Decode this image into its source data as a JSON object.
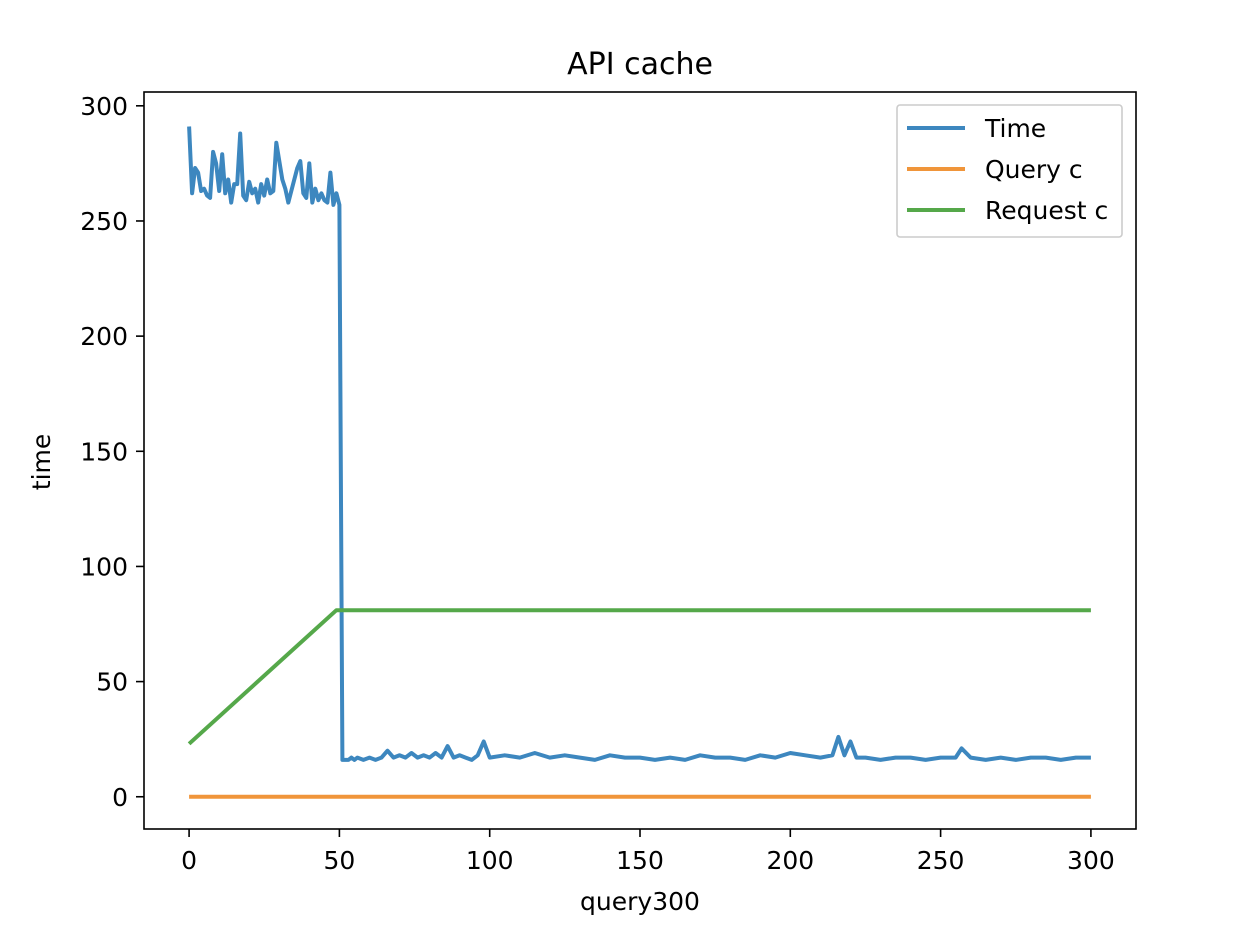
{
  "chart_data": {
    "type": "line",
    "title": "API cache",
    "xlabel": "query300",
    "ylabel": "time",
    "xlim": [
      -15,
      315
    ],
    "ylim": [
      -14,
      306
    ],
    "xticks": [
      0,
      50,
      100,
      150,
      200,
      250,
      300
    ],
    "yticks": [
      0,
      50,
      100,
      150,
      200,
      250,
      300
    ],
    "grid": false,
    "legend_position": "top-right",
    "series": [
      {
        "name": "Time",
        "color": "#3d87bf",
        "x": [
          0,
          1,
          2,
          3,
          4,
          5,
          6,
          7,
          8,
          9,
          10,
          11,
          12,
          13,
          14,
          15,
          16,
          17,
          18,
          19,
          20,
          21,
          22,
          23,
          24,
          25,
          26,
          27,
          28,
          29,
          30,
          31,
          32,
          33,
          34,
          35,
          36,
          37,
          38,
          39,
          40,
          41,
          42,
          43,
          44,
          45,
          46,
          47,
          48,
          49,
          50,
          51,
          52,
          53,
          54,
          55,
          56,
          58,
          60,
          62,
          64,
          66,
          68,
          70,
          72,
          74,
          76,
          78,
          80,
          82,
          84,
          86,
          88,
          90,
          92,
          94,
          96,
          98,
          100,
          105,
          110,
          115,
          120,
          125,
          130,
          135,
          140,
          145,
          150,
          155,
          160,
          165,
          170,
          175,
          180,
          185,
          190,
          195,
          200,
          205,
          210,
          214,
          216,
          218,
          220,
          222,
          225,
          230,
          235,
          240,
          245,
          250,
          255,
          257,
          260,
          265,
          270,
          275,
          280,
          285,
          290,
          295,
          300
        ],
        "values": [
          291,
          262,
          273,
          271,
          263,
          264,
          261,
          260,
          280,
          275,
          263,
          279,
          262,
          268,
          258,
          266,
          266,
          288,
          261,
          259,
          267,
          262,
          264,
          258,
          266,
          261,
          268,
          262,
          263,
          284,
          276,
          268,
          264,
          258,
          263,
          268,
          273,
          276,
          262,
          260,
          275,
          258,
          264,
          259,
          262,
          259,
          258,
          271,
          257,
          262,
          257,
          16,
          16,
          16,
          17,
          16,
          17,
          16,
          17,
          16,
          17,
          20,
          17,
          18,
          17,
          19,
          17,
          18,
          17,
          19,
          17,
          22,
          17,
          18,
          17,
          16,
          18,
          24,
          17,
          18,
          17,
          19,
          17,
          18,
          17,
          16,
          18,
          17,
          17,
          16,
          17,
          16,
          18,
          17,
          17,
          16,
          18,
          17,
          19,
          18,
          17,
          18,
          26,
          18,
          24,
          17,
          17,
          16,
          17,
          17,
          16,
          17,
          17,
          21,
          17,
          16,
          17,
          16,
          17,
          17,
          16,
          17,
          17
        ]
      },
      {
        "name": "Query c",
        "color": "#f0953a",
        "x": [
          0,
          300
        ],
        "values": [
          0,
          0
        ]
      },
      {
        "name": "Request c",
        "color": "#55a84a",
        "x": [
          0,
          49,
          50,
          300
        ],
        "values": [
          23,
          81,
          81,
          81
        ]
      }
    ]
  }
}
